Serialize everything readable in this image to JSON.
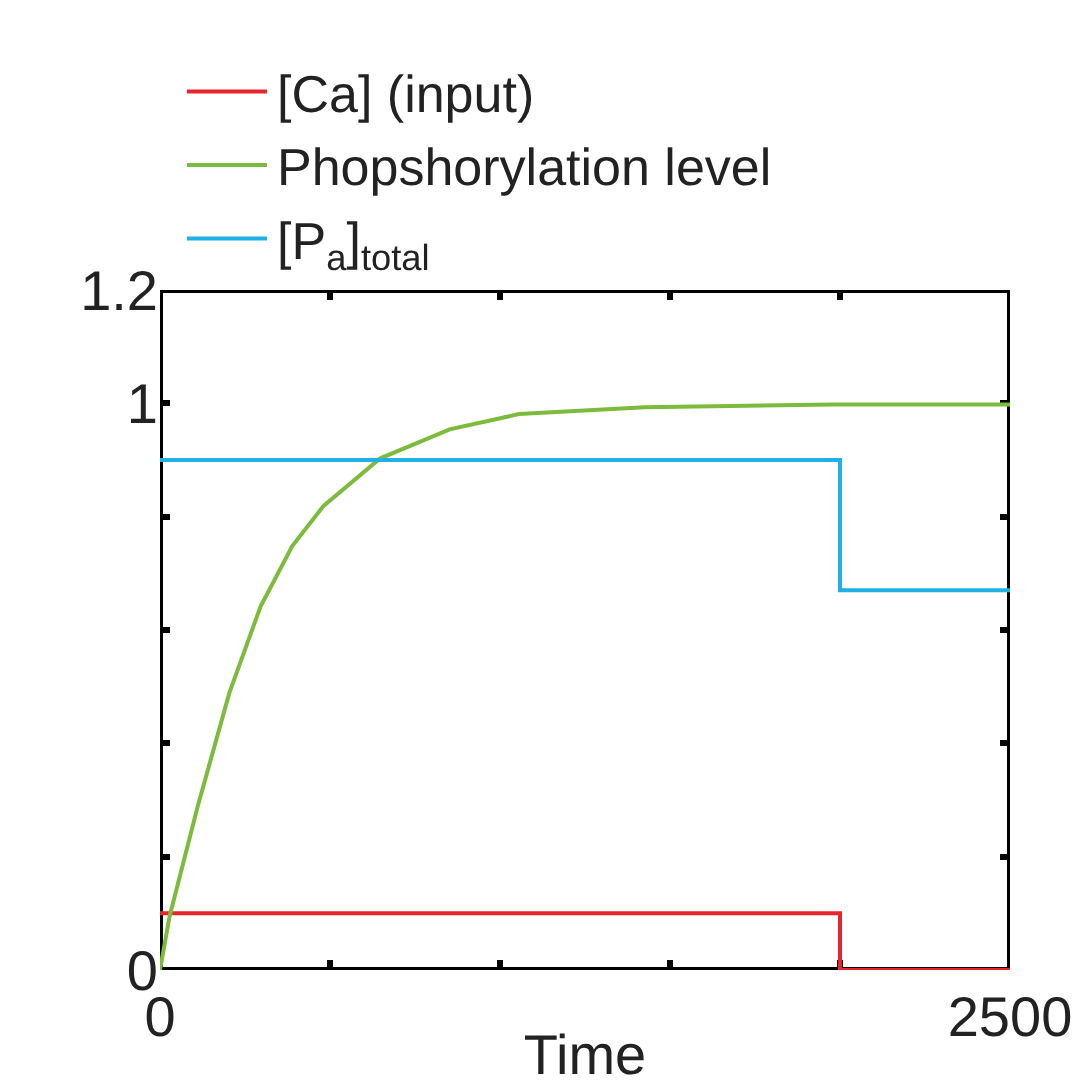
{
  "chart_data": {
    "type": "line",
    "xlabel": "Time",
    "xlim": [
      0,
      2500
    ],
    "ylim": [
      0,
      1.2
    ],
    "xticks": [
      0,
      {
        "value": 500,
        "label": null
      },
      {
        "value": 1000,
        "label": null
      },
      {
        "value": 1500,
        "label": null
      },
      {
        "value": 2000,
        "label": null
      },
      2500
    ],
    "yticks": [
      0,
      {
        "value": 0.2,
        "label": null
      },
      {
        "value": 0.4,
        "label": null
      },
      {
        "value": 0.6,
        "label": null
      },
      {
        "value": 0.8,
        "label": null
      },
      1,
      1.2
    ],
    "legend": "top",
    "series": [
      {
        "name": "[Ca] (input)",
        "type": "step",
        "color": "#e8242c",
        "x": [
          0,
          2000,
          2500
        ],
        "values": [
          0.1,
          0,
          0
        ]
      },
      {
        "name": "Phopshorylation level",
        "color": "#7dbb3c",
        "x": [
          0,
          28,
          111,
          204,
          296,
          389,
          481,
          648,
          852,
          1056,
          1426,
          1982,
          2500
        ],
        "values": [
          0,
          0.094,
          0.289,
          0.489,
          0.642,
          0.748,
          0.819,
          0.903,
          0.954,
          0.981,
          0.993,
          0.998,
          0.998
        ]
      },
      {
        "name": "[P$_{a}$]$_{total}$",
        "type": "step",
        "color": "#1fb0e6",
        "x": [
          0,
          2000,
          2500
        ],
        "values": [
          0.9,
          0.67,
          0.67
        ]
      }
    ]
  }
}
